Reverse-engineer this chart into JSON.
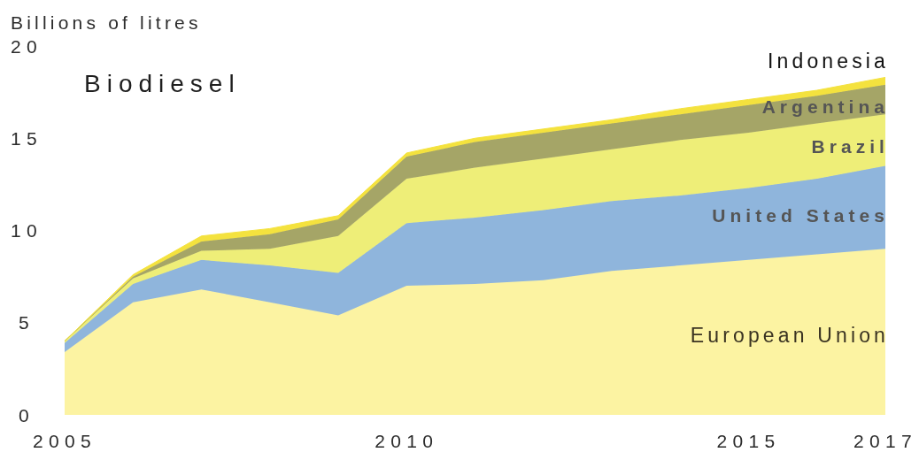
{
  "chart_data": {
    "type": "area",
    "title": "Biodiesel",
    "ylabel": "Billions of litres",
    "x": [
      2005,
      2006,
      2007,
      2008,
      2009,
      2010,
      2011,
      2012,
      2013,
      2014,
      2015,
      2016,
      2017
    ],
    "series": [
      {
        "name": "European Union",
        "color": "#fcf3a2",
        "values": [
          3.4,
          6.1,
          6.8,
          6.1,
          5.4,
          7.0,
          7.1,
          7.3,
          7.8,
          8.1,
          8.4,
          8.7,
          9.0
        ]
      },
      {
        "name": "United States",
        "color": "#8fb5dc",
        "values": [
          0.5,
          1.0,
          1.6,
          2.0,
          2.3,
          3.4,
          3.6,
          3.8,
          3.8,
          3.8,
          3.9,
          4.1,
          4.5
        ]
      },
      {
        "name": "Brazil",
        "color": "#eeee78",
        "values": [
          0.1,
          0.3,
          0.5,
          0.9,
          2.0,
          2.4,
          2.7,
          2.8,
          2.8,
          3.0,
          3.0,
          3.0,
          2.8
        ]
      },
      {
        "name": "Argentina",
        "color": "#a5a567",
        "values": [
          0.0,
          0.1,
          0.5,
          0.8,
          0.9,
          1.2,
          1.4,
          1.4,
          1.4,
          1.4,
          1.5,
          1.5,
          1.6
        ]
      },
      {
        "name": "Indonesia",
        "color": "#f4e23e",
        "values": [
          0.0,
          0.1,
          0.3,
          0.3,
          0.2,
          0.2,
          0.2,
          0.2,
          0.2,
          0.3,
          0.3,
          0.3,
          0.4
        ]
      }
    ],
    "stacked": true,
    "xlim": [
      2005,
      2017
    ],
    "ylim": [
      0,
      20
    ],
    "xticks": [
      2005,
      2010,
      2015,
      2017
    ],
    "yticks": [
      0,
      5,
      10,
      15,
      20
    ]
  }
}
